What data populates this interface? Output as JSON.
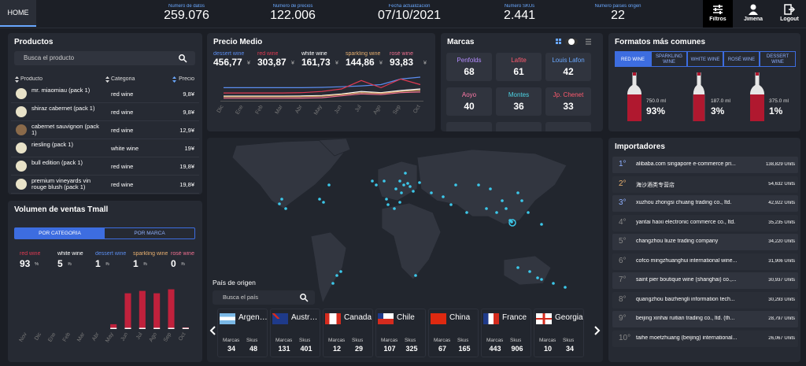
{
  "header": {
    "tab": "HOME",
    "kpis": [
      {
        "label": "Numero de datos",
        "value": "259.076"
      },
      {
        "label": "Numero de precios",
        "value": "122.006"
      },
      {
        "label": "Fecha actualizacion",
        "value": "07/10/2021"
      },
      {
        "label": "Numero SKUs",
        "value": "2.441"
      },
      {
        "label": "Numero países origen",
        "value": "22"
      }
    ],
    "buttons": [
      "Filtros",
      "Jimena",
      "Logout"
    ]
  },
  "productos": {
    "title": "Productos",
    "search": "Busca el producto",
    "columns": [
      "Producto",
      "Categoria",
      "Precio"
    ],
    "rows": [
      [
        "mr. miaomiau (pack 1)",
        "red wine",
        "9,8¥"
      ],
      [
        "shiraz cabernet (pack 1)",
        "red wine",
        "9,8¥"
      ],
      [
        "cabernet sauvignon (pack 1)",
        "red wine",
        "12,9¥"
      ],
      [
        "riesling (pack 1)",
        "white wine",
        "19¥"
      ],
      [
        "bull edition (pack 1)",
        "red wine",
        "19,8¥"
      ],
      [
        "premium vineyards vin rouge blush (pack 1)",
        "red wine",
        "19,8¥"
      ]
    ]
  },
  "volumen": {
    "title": "Volumen de ventas Tmall",
    "toggle": [
      "POR CATEGORÍA",
      "POR MARCA"
    ],
    "legend": [
      {
        "name": "red wine",
        "color": "#e03a52",
        "value": "93",
        "unit": "%"
      },
      {
        "name": "white wine",
        "color": "#ffffff",
        "value": "5",
        "unit": "%"
      },
      {
        "name": "dessert wine",
        "color": "#5b8def",
        "value": "1",
        "unit": "%"
      },
      {
        "name": "sparkling wine",
        "color": "#e8b070",
        "value": "1",
        "unit": "%"
      },
      {
        "name": "rosé wine",
        "color": "#f07090",
        "value": "0",
        "unit": "%"
      }
    ],
    "chart": {
      "type": "bar",
      "color": "#c0213c",
      "categories": [
        "Nov",
        "Dic",
        "Ene",
        "Feb",
        "Mar",
        "Abr",
        "May",
        "Jun",
        "Jul",
        "Ago",
        "Sep",
        "Oct"
      ],
      "values": [
        0,
        0,
        0,
        0,
        0,
        0,
        6,
        45,
        48,
        45,
        50,
        2
      ]
    }
  },
  "precio_medio": {
    "title": "Precio Medio",
    "type": "line",
    "categories": [
      "Dic",
      "Ene",
      "Feb",
      "Mar",
      "Abr",
      "May",
      "Jun",
      "Jul",
      "Ago",
      "Sep",
      "Oct"
    ],
    "series": [
      {
        "name": "dessert wine",
        "color": "#5b8def",
        "value": "456,77",
        "currency": "¥",
        "values": [
          420,
          420,
          420,
          420,
          420,
          430,
          450,
          480,
          520,
          700,
          760
        ]
      },
      {
        "name": "red wine",
        "color": "#e03a52",
        "value": "303,87",
        "currency": "¥",
        "values": [
          250,
          250,
          250,
          250,
          260,
          300,
          380,
          650,
          420,
          700,
          520
        ]
      },
      {
        "name": "white wine",
        "color": "#ffffff",
        "value": "161,73",
        "currency": "¥",
        "values": [
          150,
          150,
          150,
          150,
          155,
          170,
          220,
          300,
          260,
          330,
          380
        ]
      },
      {
        "name": "sparkling wine",
        "color": "#e8b070",
        "value": "144,86",
        "currency": "¥",
        "values": [
          130,
          130,
          130,
          130,
          135,
          150,
          200,
          260,
          240,
          300,
          340
        ]
      },
      {
        "name": "rosé wine",
        "color": "#f07090",
        "value": "93,83",
        "currency": "¥",
        "values": [
          80,
          80,
          80,
          80,
          85,
          100,
          160,
          220,
          200,
          260,
          280
        ]
      }
    ]
  },
  "marcas": {
    "title": "Marcas",
    "items": [
      {
        "name": "Penfolds",
        "value": "68",
        "color": "#b48cff"
      },
      {
        "name": "Lafite",
        "value": "61",
        "color": "#ff5a6e"
      },
      {
        "name": "Louis Lafon",
        "value": "42",
        "color": "#6aa8ff"
      },
      {
        "name": "Aoyo",
        "value": "40",
        "color": "#ff7aa8"
      },
      {
        "name": "Montes",
        "value": "36",
        "color": "#4dd6e6"
      },
      {
        "name": "Jp. Chenet",
        "value": "33",
        "color": "#ff5a6e"
      }
    ]
  },
  "formatos": {
    "title": "Formatos más comunes",
    "tabs": [
      "RED WINE",
      "SPARKLING WINE",
      "WHITE WINE",
      "ROSÉ WINE",
      "DESSERT WINE"
    ],
    "bottles": [
      {
        "size": "750.0 ml",
        "share": "93%"
      },
      {
        "size": "187.0 ml",
        "share": "3%"
      },
      {
        "size": "375.0 ml",
        "share": "1%"
      }
    ]
  },
  "importadores": {
    "title": "Importadores",
    "rows": [
      {
        "rank": "1°",
        "name": "alibaba.com singapore e-commerce pri...",
        "units": "138,829 Units"
      },
      {
        "rank": "2°",
        "name": "海沙酒类专营店",
        "units": "54,632 Units"
      },
      {
        "rank": "3°",
        "name": "xuzhou zhongsi chuang trading co., ltd.",
        "units": "42,922 Units"
      },
      {
        "rank": "4°",
        "name": "yantai haixi electronic commerce co., ltd.",
        "units": "35,235 Units"
      },
      {
        "rank": "5°",
        "name": "changzhou liuze trading company",
        "units": "34,220 Units"
      },
      {
        "rank": "6°",
        "name": "cofco mingzhuanghui international wine...",
        "units": "31,906 Units"
      },
      {
        "rank": "7°",
        "name": "saint pier boutique wine (shanghai) co.,...",
        "units": "30,937 Units"
      },
      {
        "rank": "8°",
        "name": "quangzhou baizhengli information tech...",
        "units": "30,293 Units"
      },
      {
        "rank": "9°",
        "name": "beijing xinhai ruitian trading co., ltd. (th...",
        "units": "28,797 Units"
      },
      {
        "rank": "10°",
        "name": "taihe moetzhuang (beijing) international...",
        "units": "26,067 Units"
      }
    ]
  },
  "paises": {
    "title": "País de origen",
    "search": "Busca el país",
    "card_labels": [
      "Marcas",
      "Skus"
    ],
    "countries": [
      {
        "name": "Argentina",
        "marcas": "34",
        "skus": "48"
      },
      {
        "name": "Australia",
        "marcas": "131",
        "skus": "401"
      },
      {
        "name": "Canada",
        "marcas": "12",
        "skus": "29"
      },
      {
        "name": "Chile",
        "marcas": "107",
        "skus": "325"
      },
      {
        "name": "China",
        "marcas": "67",
        "skus": "165"
      },
      {
        "name": "France",
        "marcas": "443",
        "skus": "906"
      },
      {
        "name": "Georgia",
        "marcas": "10",
        "skus": "34"
      }
    ]
  }
}
